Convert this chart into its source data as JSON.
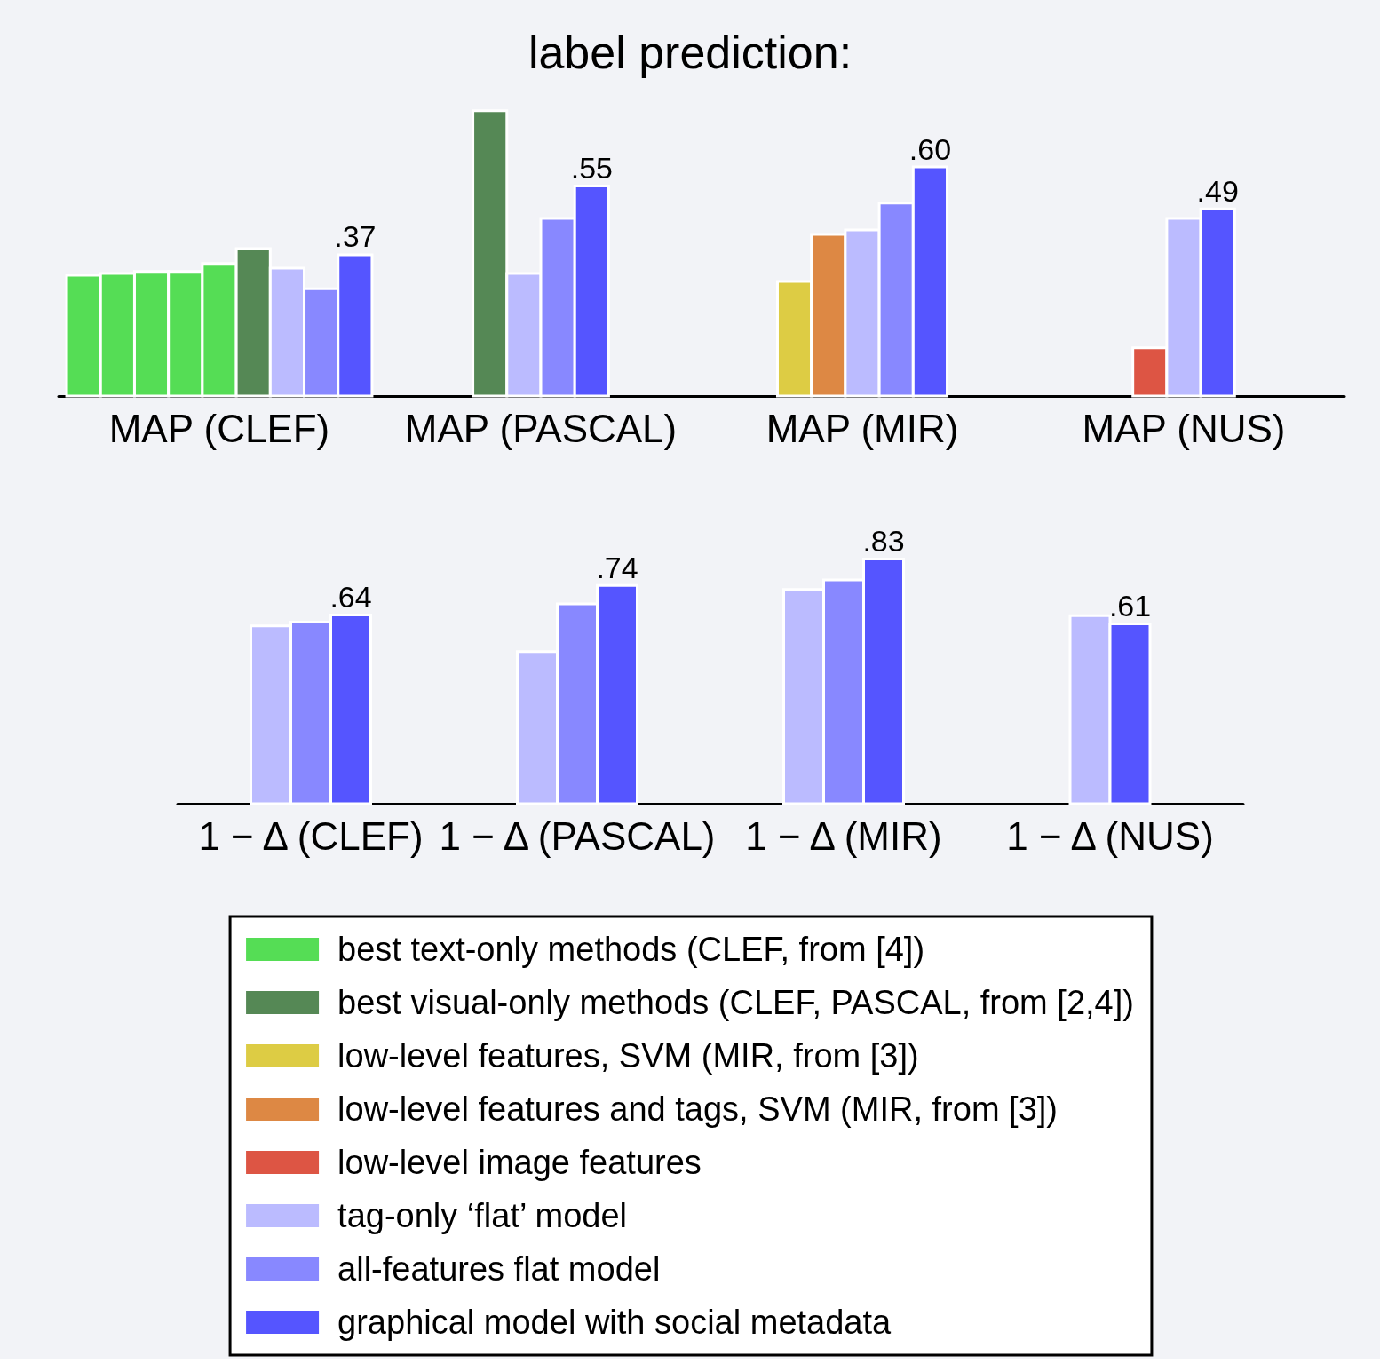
{
  "chart_data": [
    {
      "type": "bar",
      "title": "label prediction:",
      "categories": [
        "MAP (CLEF)",
        "MAP (PASCAL)",
        "MAP (MIR)",
        "MAP (NUS)"
      ],
      "legend": "bottom",
      "series": [
        {
          "name": "best text-only methods (CLEF, from [4])",
          "color": "#55dd55",
          "values": [
            0.316,
            null,
            null,
            null
          ]
        },
        {
          "color": "#55dd55",
          "values": [
            0.321,
            null,
            null,
            null
          ]
        },
        {
          "color": "#55dd55",
          "values": [
            0.326,
            null,
            null,
            null
          ]
        },
        {
          "color": "#55dd55",
          "values": [
            0.326,
            null,
            null,
            null
          ]
        },
        {
          "color": "#55dd55",
          "values": [
            0.347,
            null,
            null,
            null
          ]
        },
        {
          "name": "best visual-only methods (CLEF, PASCAL, from [2,4])",
          "color": "#558855",
          "values": [
            0.386,
            0.747,
            null,
            null
          ]
        },
        {
          "name": "low-level features, SVM (MIR, from [3])",
          "color": "#ddcc44",
          "values": [
            null,
            null,
            0.3,
            null
          ]
        },
        {
          "name": "low-level features and tags, SVM (MIR, from [3])",
          "color": "#dd8844",
          "values": [
            null,
            null,
            0.423,
            null
          ]
        },
        {
          "name": "low-level image features",
          "color": "#dd5544",
          "values": [
            null,
            null,
            null,
            0.126
          ]
        },
        {
          "name": "tag-only ‘flat’ model",
          "color": "#bbbbff",
          "values": [
            0.335,
            0.321,
            0.435,
            0.465
          ]
        },
        {
          "name": "all-features flat model",
          "color": "#8888ff",
          "values": [
            0.281,
            0.465,
            0.505,
            null
          ]
        },
        {
          "name": "graphical model with social metadata",
          "color": "#5555ff",
          "values": [
            0.37,
            0.55,
            0.6,
            0.49
          ],
          "value_labels": [
            ".37",
            ".55",
            ".60",
            ".49"
          ]
        }
      ]
    },
    {
      "type": "bar",
      "categories": [
        "1 − Δ (CLEF)",
        "1 − Δ (PASCAL)",
        "1 − Δ (MIR)",
        "1 − Δ (NUS)"
      ],
      "series": [
        {
          "color": "#bbbbff",
          "values": [
            0.603,
            0.516,
            0.727,
            0.638
          ]
        },
        {
          "color": "#8888ff",
          "values": [
            0.616,
            0.678,
            0.759,
            null
          ]
        },
        {
          "color": "#5555ff",
          "values": [
            0.64,
            0.74,
            0.83,
            0.61
          ],
          "value_labels": [
            ".64",
            ".74",
            ".83",
            ".61"
          ]
        }
      ]
    }
  ]
}
